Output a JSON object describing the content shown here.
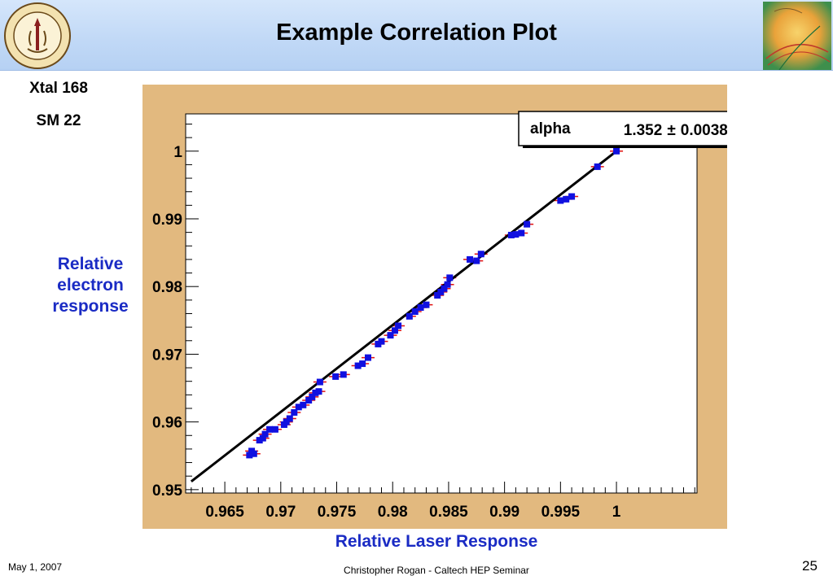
{
  "slide": {
    "title": "Example Correlation Plot",
    "xtal_label": "Xtal 168",
    "sm_label": "SM 22",
    "date": "May 1, 2007",
    "credit": "Christopher Rogan - Caltech HEP Seminar",
    "page_number": "25"
  },
  "colors": {
    "header": "#c4dbf7",
    "plot_frame": "#e2b97f",
    "axis_title": "#1a2bc4",
    "marker": "#1010e0",
    "error_bar": "#e01010",
    "fit_line": "#000000"
  },
  "chart_data": {
    "type": "scatter",
    "xlabel": "Relative Laser Response",
    "ylabel": "Relative\nelectron\nresponse",
    "xlim": [
      0.9615,
      1.0072
    ],
    "ylim": [
      0.9495,
      1.0055
    ],
    "x_ticks": [
      0.965,
      0.97,
      0.975,
      0.98,
      0.985,
      0.99,
      0.995,
      1
    ],
    "x_tick_labels": [
      "0.965",
      "0.97",
      "0.975",
      "0.98",
      "0.985",
      "0.99",
      "0.995",
      "1"
    ],
    "y_ticks": [
      0.95,
      0.96,
      0.97,
      0.98,
      0.99,
      1
    ],
    "y_tick_labels": [
      "0.95",
      "0.96",
      "0.97",
      "0.98",
      "0.99",
      "1"
    ],
    "grid": false,
    "fit": {
      "parameter": "alpha",
      "value": "1.352",
      "pm": "±",
      "error": "0.003846",
      "line": [
        [
          0.962,
          0.9512
        ],
        [
          1.0,
          1.0
        ]
      ]
    },
    "x": [
      0.9672,
      0.9674,
      0.9676,
      0.9681,
      0.9684,
      0.9686,
      0.969,
      0.9695,
      0.9703,
      0.9705,
      0.9708,
      0.9712,
      0.9716,
      0.972,
      0.9725,
      0.9728,
      0.9731,
      0.9734,
      0.9735,
      0.9749,
      0.9756,
      0.9769,
      0.9773,
      0.9778,
      0.9787,
      0.979,
      0.9798,
      0.9802,
      0.9805,
      0.9815,
      0.982,
      0.9825,
      0.983,
      0.984,
      0.9843,
      0.9846,
      0.9849,
      0.9851,
      0.9869,
      0.9875,
      0.9879,
      0.9906,
      0.991,
      0.9915,
      0.992,
      0.995,
      0.9955,
      0.996,
      0.9983,
      1.0
    ],
    "y": [
      0.9551,
      0.9557,
      0.9553,
      0.9573,
      0.9576,
      0.9582,
      0.9589,
      0.9589,
      0.9596,
      0.96,
      0.9605,
      0.9614,
      0.9622,
      0.9625,
      0.9632,
      0.9637,
      0.9643,
      0.9645,
      0.9659,
      0.9667,
      0.967,
      0.9683,
      0.9686,
      0.9695,
      0.9715,
      0.9719,
      0.9728,
      0.9735,
      0.9742,
      0.9756,
      0.9763,
      0.9769,
      0.9773,
      0.9787,
      0.9792,
      0.9797,
      0.9803,
      0.9813,
      0.984,
      0.9838,
      0.9848,
      0.9876,
      0.9877,
      0.9879,
      0.9892,
      0.9927,
      0.9929,
      0.9933,
      0.9977,
      1.0
    ]
  }
}
